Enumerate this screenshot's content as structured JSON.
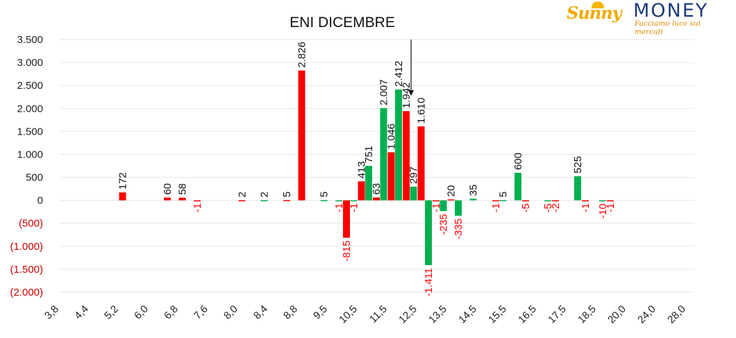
{
  "logo": {
    "brand_a": "Sunny",
    "brand_b": "MONEY",
    "tagline": "Facciamo luce sui mercati"
  },
  "colors": {
    "positive": "#00b050",
    "negative": "#ff0000",
    "negative_tick": "#cc0000",
    "tick": "#222222"
  },
  "chart_data": {
    "type": "bar",
    "title": "ENI DICEMBRE",
    "ylim": [
      -2000,
      3500
    ],
    "grid": true,
    "yticks": [
      {
        "value": 3500,
        "label": "3.500"
      },
      {
        "value": 3000,
        "label": "3.000"
      },
      {
        "value": 2500,
        "label": "2.500"
      },
      {
        "value": 2000,
        "label": "2.000"
      },
      {
        "value": 1500,
        "label": "1.500"
      },
      {
        "value": 1000,
        "label": "1.000"
      },
      {
        "value": 500,
        "label": "500"
      },
      {
        "value": 0,
        "label": "0"
      },
      {
        "value": -500,
        "label": "(500)"
      },
      {
        "value": -1000,
        "label": "(1.000)"
      },
      {
        "value": -1500,
        "label": "(1.500)"
      },
      {
        "value": -2000,
        "label": "(2.000)"
      }
    ],
    "xtick_labels": [
      "3,8",
      "4,4",
      "5,2",
      "6,0",
      "6,8",
      "7,6",
      "8,0",
      "8,4",
      "8,8",
      "9,5",
      "10,5",
      "11,5",
      "12,5",
      "13,5",
      "14,5",
      "15,5",
      "16,5",
      "17,5",
      "18,5",
      "20,0",
      "24,0",
      "28,0"
    ],
    "annotation_arrow_x": 12.5,
    "series": [
      {
        "color": "green",
        "bars": [
          {
            "x": 8.4,
            "value": 2,
            "label": "2"
          },
          {
            "x": 9.5,
            "value": 5,
            "label": "5"
          },
          {
            "x": 10.0,
            "value": -1,
            "label": "-1"
          },
          {
            "x": 10.5,
            "value": -1,
            "label": "-1"
          },
          {
            "x": 11.0,
            "value": 751,
            "label": "751"
          },
          {
            "x": 11.5,
            "value": 2007,
            "label": "2.007"
          },
          {
            "x": 12.0,
            "value": 2412,
            "label": "2.412"
          },
          {
            "x": 12.5,
            "value": 297,
            "label": "297"
          },
          {
            "x": 13.0,
            "value": -1411,
            "label": "-1.411"
          },
          {
            "x": 13.5,
            "value": -235,
            "label": "-235"
          },
          {
            "x": 14.0,
            "value": -335,
            "label": "-335"
          },
          {
            "x": 14.5,
            "value": 35,
            "label": "35"
          },
          {
            "x": 15.5,
            "value": 5,
            "label": "5"
          },
          {
            "x": 16.0,
            "value": 600,
            "label": "600"
          },
          {
            "x": 17.0,
            "value": -5,
            "label": "-5"
          },
          {
            "x": 18.0,
            "value": 525,
            "label": "525"
          },
          {
            "x": 19.0,
            "value": -10,
            "label": "-10"
          }
        ]
      },
      {
        "color": "red",
        "bars": [
          {
            "x": 5.2,
            "value": 172,
            "label": "172"
          },
          {
            "x": 6.4,
            "value": 60,
            "label": "60"
          },
          {
            "x": 6.8,
            "value": 58,
            "label": "58"
          },
          {
            "x": 7.2,
            "value": -1,
            "label": "-1"
          },
          {
            "x": 8.0,
            "value": 2,
            "label": "2"
          },
          {
            "x": 8.6,
            "value": 5,
            "label": "5"
          },
          {
            "x": 8.8,
            "value": 2826,
            "label": "2.826"
          },
          {
            "x": 10.0,
            "value": -815,
            "label": "-815"
          },
          {
            "x": 10.5,
            "value": 413,
            "label": "413"
          },
          {
            "x": 11.0,
            "value": 63,
            "label": "63"
          },
          {
            "x": 11.5,
            "value": 1046,
            "label": "1.046"
          },
          {
            "x": 12.0,
            "value": 1942,
            "label": "1.942"
          },
          {
            "x": 12.5,
            "value": 1610,
            "label": "1.610"
          },
          {
            "x": 13.0,
            "value": -1,
            "label": "-1"
          },
          {
            "x": 13.5,
            "value": 20,
            "label": "20"
          },
          {
            "x": 15.0,
            "value": -1,
            "label": "-1"
          },
          {
            "x": 16.0,
            "value": -5,
            "label": "-5"
          },
          {
            "x": 17.0,
            "value": -2,
            "label": "-2"
          },
          {
            "x": 18.0,
            "value": -1,
            "label": "-1"
          },
          {
            "x": 19.0,
            "value": -1,
            "label": "-1"
          }
        ]
      }
    ]
  }
}
